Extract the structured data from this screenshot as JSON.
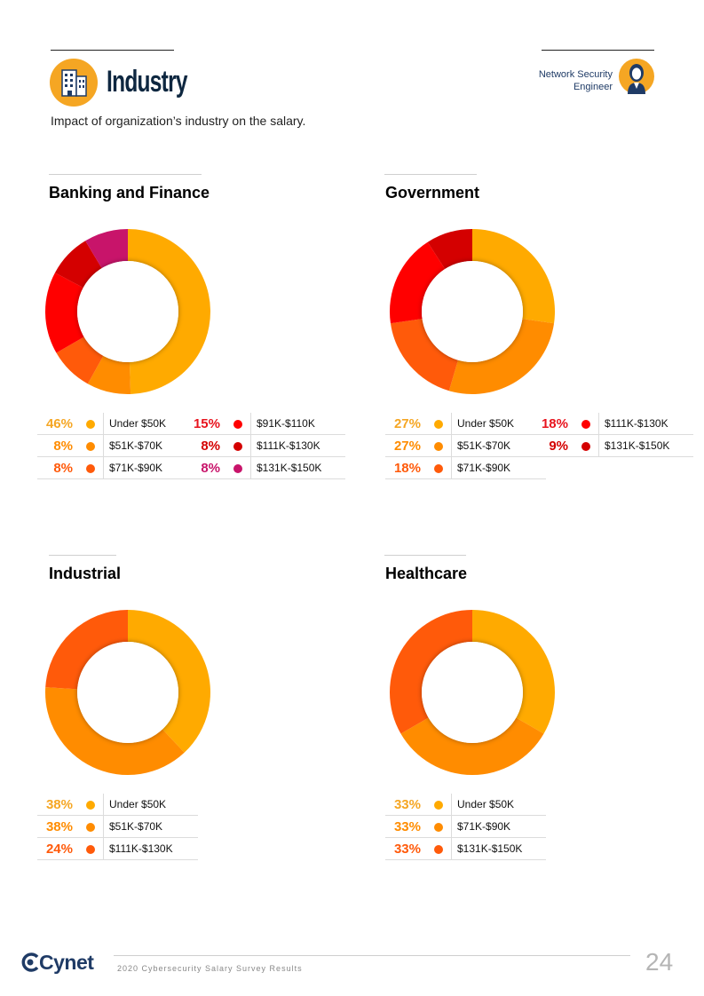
{
  "header": {
    "title": "Industry",
    "subtitle": "Impact of organization’s industry on the salary.",
    "role_line1": "Network Security",
    "role_line2": "Engineer"
  },
  "colors": {
    "under50": "#FFAA00",
    "k51_70": "#FF8C00",
    "k71_90": "#FF5A0A",
    "k91_110": "#FF0000",
    "k111_130": "#D40000",
    "k131_150": "#C8146A",
    "accent_orange": "#F5A623",
    "brand_navy": "#1f3b66"
  },
  "chart_data": [
    {
      "type": "pie",
      "title": "Banking and Finance",
      "categories": [
        "Under $50K",
        "$51K-$70K",
        "$71K-$90K",
        "$91K-$110K",
        "$111K-$130K",
        "$131K-$150K"
      ],
      "values": [
        46,
        8,
        8,
        15,
        8,
        8
      ],
      "labels": [
        "46%",
        "8%",
        "8%",
        "15%",
        "8%",
        "8%"
      ],
      "colors": [
        "#FFAA00",
        "#FF8C00",
        "#FF5A0A",
        "#FF0000",
        "#D40000",
        "#C8146A"
      ],
      "pct_colors": [
        "#F5A623",
        "#FF8C00",
        "#FF5A0A",
        "#E8141E",
        "#D40000",
        "#C8146A"
      ]
    },
    {
      "type": "pie",
      "title": "Government",
      "categories": [
        "Under $50K",
        "$51K-$70K",
        "$71K-$90K",
        "$111K-$130K",
        "$131K-$150K"
      ],
      "values": [
        27,
        27,
        18,
        18,
        9
      ],
      "labels": [
        "27%",
        "27%",
        "18%",
        "18%",
        "9%"
      ],
      "colors": [
        "#FFAA00",
        "#FF8C00",
        "#FF5A0A",
        "#FF0000",
        "#D40000"
      ],
      "pct_colors": [
        "#F5A623",
        "#FF8C00",
        "#FF5A0A",
        "#E8141E",
        "#D40000"
      ]
    },
    {
      "type": "pie",
      "title": "Industrial",
      "categories": [
        "Under $50K",
        "$51K-$70K",
        "$111K-$130K"
      ],
      "values": [
        38,
        38,
        24
      ],
      "labels": [
        "38%",
        "38%",
        "24%"
      ],
      "colors": [
        "#FFAA00",
        "#FF8C00",
        "#FF5A0A"
      ],
      "pct_colors": [
        "#F5A623",
        "#FF8C00",
        "#FF5A0A"
      ]
    },
    {
      "type": "pie",
      "title": "Healthcare",
      "categories": [
        "Under $50K",
        "$71K-$90K",
        "$131K-$150K"
      ],
      "values": [
        33,
        33,
        33
      ],
      "labels": [
        "33%",
        "33%",
        "33%"
      ],
      "colors": [
        "#FFAA00",
        "#FF8C00",
        "#FF5A0A"
      ],
      "pct_colors": [
        "#F5A623",
        "#FF8C00",
        "#FF5A0A"
      ]
    }
  ],
  "footer": {
    "logo": "Cynet",
    "text": "2020 Cybersecurity Salary Survey Results",
    "page": "24"
  }
}
